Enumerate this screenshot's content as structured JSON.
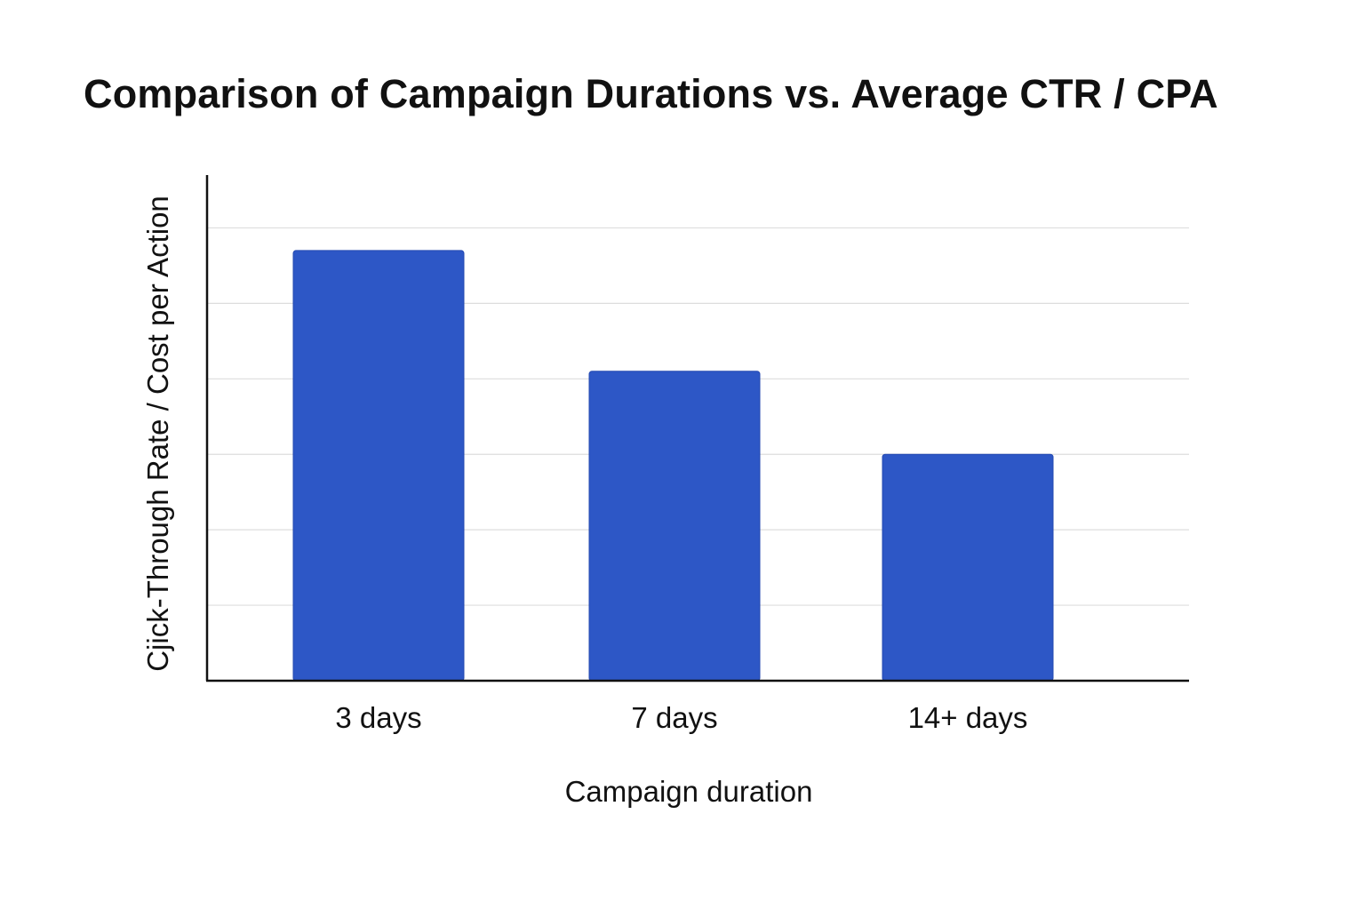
{
  "chart_data": {
    "type": "bar",
    "title": "Comparison of Campaign Durations vs. Average CTR / CPA",
    "xlabel": "Campaign duration",
    "ylabel": "Cjick-Through Rate / Cost per Action",
    "categories": [
      "3 days",
      "7 days",
      "14+ days"
    ],
    "values": [
      5.7,
      4.1,
      3.0
    ],
    "ylim": [
      0,
      6.7
    ],
    "gridlines": [
      1,
      2,
      3,
      4,
      5,
      6
    ],
    "grid": true,
    "y_tick_labels_shown": false,
    "legend": "none",
    "colors": {
      "bar": "#2D57C6",
      "bar_edge": "#2449B0",
      "grid": "#DDDDDD",
      "axis": "#111111"
    }
  }
}
